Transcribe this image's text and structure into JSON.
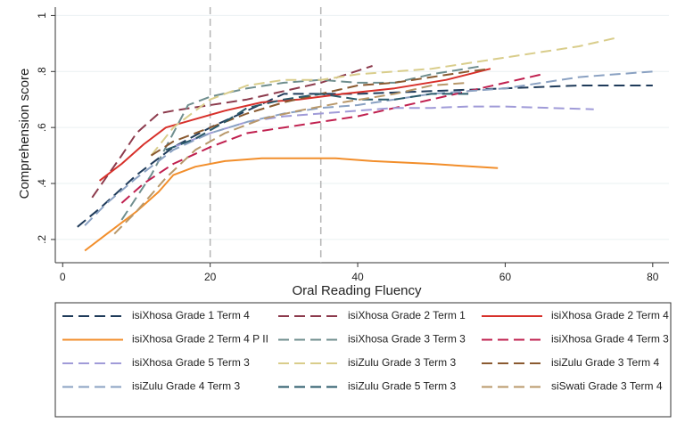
{
  "chart_data": {
    "type": "line",
    "x_label": "Oral Reading Fluency",
    "y_label": "Comprehension score",
    "xlim": [
      -1,
      82.2
    ],
    "ylim": [
      0.117,
      1.03
    ],
    "xticks": [
      0,
      20,
      40,
      60,
      80
    ],
    "yticks": [
      {
        "value": 0.2,
        "label": ".2"
      },
      {
        "value": 0.4,
        "label": ".4"
      },
      {
        "value": 0.6,
        "label": ".6"
      },
      {
        "value": 0.8,
        "label": ".8"
      },
      1
    ],
    "grid": true,
    "vlines": [
      20,
      35
    ],
    "legend_position": "bottom",
    "series": [
      {
        "name": "isiXhosa Grade 1 Term 4",
        "color": "#1f3b5a",
        "line_style": "dashed",
        "x": [
          2,
          5,
          10,
          15,
          20,
          25,
          30,
          35,
          40,
          50,
          60,
          70,
          80
        ],
        "values": [
          0.245,
          0.31,
          0.43,
          0.53,
          0.6,
          0.66,
          0.72,
          0.72,
          0.72,
          0.73,
          0.74,
          0.75,
          0.75
        ]
      },
      {
        "name": "isiXhosa Grade 2 Term 1",
        "color": "#8c3a4c",
        "line_style": "dashed",
        "x": [
          4,
          8,
          10,
          13,
          15,
          20,
          25,
          30,
          35,
          42
        ],
        "values": [
          0.35,
          0.5,
          0.58,
          0.65,
          0.66,
          0.68,
          0.7,
          0.73,
          0.76,
          0.82
        ]
      },
      {
        "name": "isiXhosa Grade 2 Term 4",
        "color": "#d7302a",
        "line_style": "solid",
        "x": [
          5,
          8,
          11,
          14,
          18,
          22,
          27,
          32,
          38,
          45,
          52,
          58
        ],
        "values": [
          0.41,
          0.47,
          0.54,
          0.6,
          0.63,
          0.66,
          0.69,
          0.7,
          0.72,
          0.74,
          0.77,
          0.81
        ]
      },
      {
        "name": "isiXhosa Grade 2 Term 4 P II",
        "color": "#f28e2b",
        "line_style": "solid",
        "x": [
          3,
          6,
          10,
          13,
          15,
          18,
          22,
          27,
          32,
          37,
          42,
          50,
          59
        ],
        "values": [
          0.16,
          0.22,
          0.3,
          0.37,
          0.43,
          0.46,
          0.48,
          0.49,
          0.49,
          0.49,
          0.48,
          0.47,
          0.455
        ]
      },
      {
        "name": "isiXhosa Grade 3 Term 3",
        "color": "#6f8e8e",
        "line_style": "dashed",
        "x": [
          8,
          12,
          15,
          17,
          20,
          25,
          30,
          35,
          40,
          45,
          50,
          57
        ],
        "values": [
          0.27,
          0.43,
          0.58,
          0.68,
          0.71,
          0.74,
          0.76,
          0.77,
          0.76,
          0.76,
          0.79,
          0.82
        ]
      },
      {
        "name": "isiXhosa Grade 4 Term 3",
        "color": "#c0204f",
        "line_style": "dashed",
        "x": [
          8,
          11,
          15,
          20,
          25,
          30,
          35,
          40,
          45,
          50,
          55,
          60,
          65
        ],
        "values": [
          0.33,
          0.4,
          0.47,
          0.53,
          0.58,
          0.6,
          0.62,
          0.64,
          0.67,
          0.7,
          0.73,
          0.76,
          0.79
        ]
      },
      {
        "name": "isiXhosa Grade 5 Term 3",
        "color": "#a09bd8",
        "line_style": "dashed",
        "x": [
          15,
          20,
          25,
          30,
          35,
          40,
          45,
          50,
          55,
          60,
          66,
          72
        ],
        "values": [
          0.53,
          0.58,
          0.62,
          0.64,
          0.65,
          0.66,
          0.67,
          0.67,
          0.675,
          0.675,
          0.67,
          0.665
        ]
      },
      {
        "name": "isiZulu Grade 3 Term 3",
        "color": "#d9cd8b",
        "line_style": "dashed",
        "x": [
          12,
          15,
          20,
          25,
          30,
          35,
          40,
          45,
          50,
          55,
          60,
          65,
          70,
          75
        ],
        "values": [
          0.5,
          0.6,
          0.7,
          0.75,
          0.77,
          0.77,
          0.79,
          0.8,
          0.81,
          0.83,
          0.85,
          0.87,
          0.89,
          0.92
        ]
      },
      {
        "name": "isiZulu Grade 3 Term 4",
        "color": "#8a5a30",
        "line_style": "dashed",
        "x": [
          12,
          15,
          20,
          25,
          30,
          35,
          40,
          45,
          50,
          55,
          58
        ],
        "values": [
          0.5,
          0.55,
          0.6,
          0.65,
          0.69,
          0.72,
          0.75,
          0.76,
          0.78,
          0.8,
          0.81
        ]
      },
      {
        "name": "isiZulu Grade 4 Term 3",
        "color": "#8aa1c2",
        "line_style": "dashed",
        "x": [
          3,
          6,
          10,
          15,
          20,
          25,
          30,
          35,
          40,
          45,
          50,
          55,
          60,
          65,
          70,
          75,
          80
        ],
        "values": [
          0.25,
          0.33,
          0.42,
          0.52,
          0.58,
          0.62,
          0.65,
          0.67,
          0.68,
          0.7,
          0.72,
          0.73,
          0.74,
          0.76,
          0.78,
          0.79,
          0.8
        ]
      },
      {
        "name": "isiZulu Grade 5 Term 3",
        "color": "#2a5a6a",
        "line_style": "dashed",
        "x": [
          14,
          18,
          22,
          25,
          30,
          35,
          40,
          45,
          50,
          55
        ],
        "values": [
          0.52,
          0.56,
          0.62,
          0.67,
          0.7,
          0.72,
          0.7,
          0.7,
          0.72,
          0.72
        ]
      },
      {
        "name": "siSwati Grade 3 Term 4",
        "color": "#b8986a",
        "line_style": "dashed",
        "x": [
          7,
          10,
          14,
          18,
          22,
          27,
          32,
          38,
          45,
          50,
          55
        ],
        "values": [
          0.22,
          0.3,
          0.42,
          0.52,
          0.58,
          0.63,
          0.66,
          0.69,
          0.72,
          0.75,
          0.76
        ]
      }
    ]
  }
}
